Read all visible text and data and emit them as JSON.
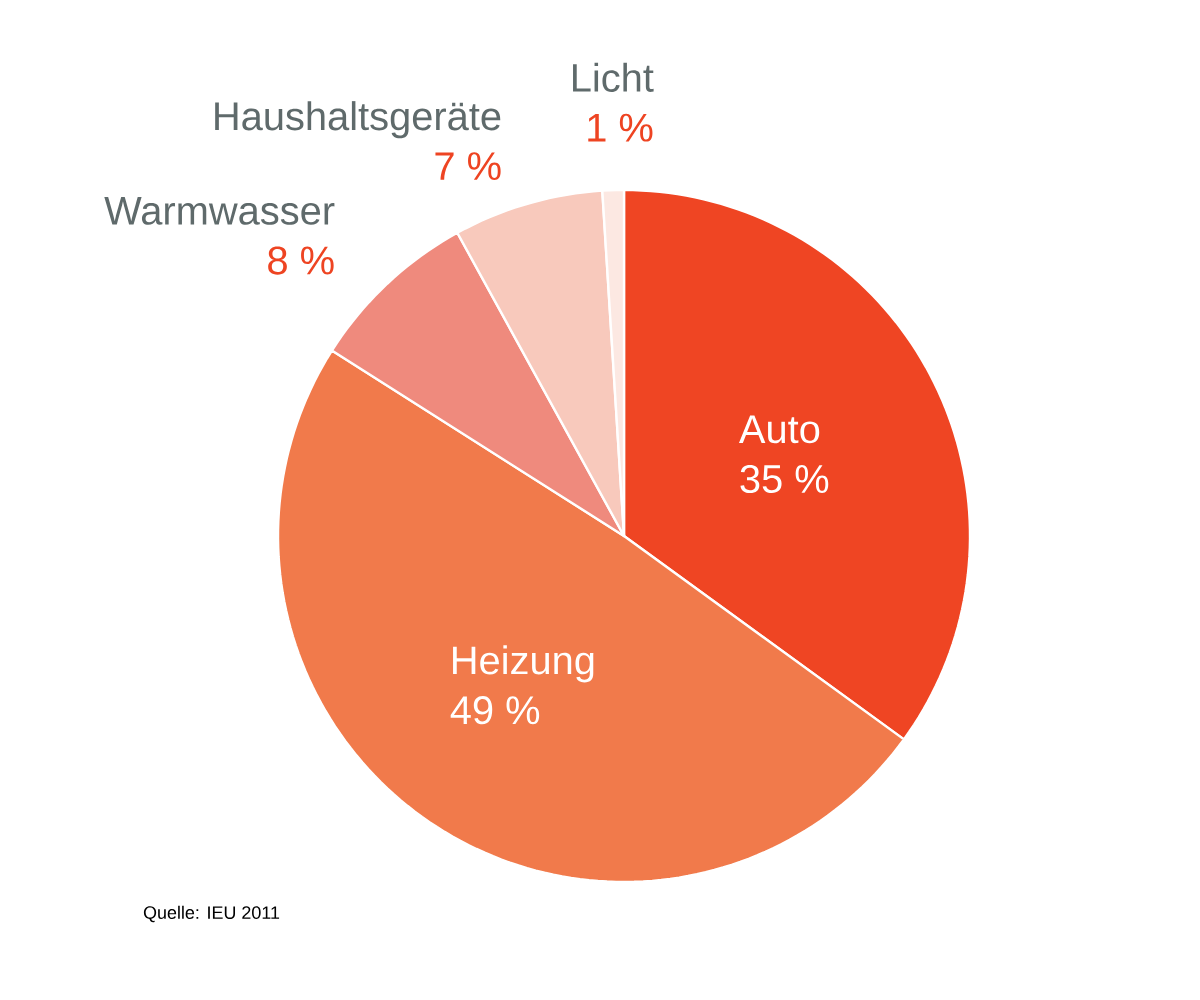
{
  "chart_data": {
    "type": "pie",
    "categories": [
      "Auto",
      "Heizung",
      "Warmwasser",
      "Haushaltsgeräte",
      "Licht"
    ],
    "values": [
      35,
      49,
      8,
      7,
      1
    ],
    "value_labels": [
      "35 %",
      "49 %",
      "8 %",
      "7 %",
      "1 %"
    ],
    "colors": [
      "#ef4523",
      "#f17a4b",
      "#ef8a7d",
      "#f8c9bc",
      "#fce8e2"
    ],
    "annotations": [
      "Quelle: IEU 2011"
    ]
  }
}
